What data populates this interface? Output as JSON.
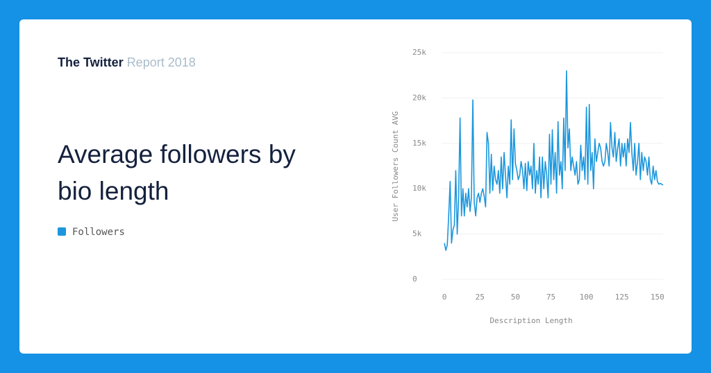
{
  "header": {
    "brand": "The Twitter",
    "report": "Report 2018"
  },
  "chart_data": {
    "type": "line",
    "title": "Average followers by bio length",
    "x_label": "Description Length",
    "y_label": "User Followers Count AVG",
    "x": [
      0,
      1,
      2,
      3,
      4,
      5,
      6,
      7,
      8,
      9,
      10,
      11,
      12,
      13,
      14,
      15,
      16,
      17,
      18,
      19,
      20,
      21,
      22,
      23,
      24,
      25,
      26,
      27,
      28,
      29,
      30,
      31,
      32,
      33,
      34,
      35,
      36,
      37,
      38,
      39,
      40,
      41,
      42,
      43,
      44,
      45,
      46,
      47,
      48,
      49,
      50,
      51,
      52,
      53,
      54,
      55,
      56,
      57,
      58,
      59,
      60,
      61,
      62,
      63,
      64,
      65,
      66,
      67,
      68,
      69,
      70,
      71,
      72,
      73,
      74,
      75,
      76,
      77,
      78,
      79,
      80,
      81,
      82,
      83,
      84,
      85,
      86,
      87,
      88,
      89,
      90,
      91,
      92,
      93,
      94,
      95,
      96,
      97,
      98,
      99,
      100,
      101,
      102,
      103,
      104,
      105,
      106,
      107,
      108,
      109,
      110,
      111,
      112,
      113,
      114,
      115,
      116,
      117,
      118,
      119,
      120,
      121,
      122,
      123,
      124,
      125,
      126,
      127,
      128,
      129,
      130,
      131,
      132,
      133,
      134,
      135,
      136,
      137,
      138,
      139,
      140,
      141,
      142,
      143,
      144,
      145,
      146,
      147,
      148,
      149,
      150,
      151,
      152,
      153,
      154
    ],
    "series": [
      {
        "name": "Followers",
        "color": "#1b96dc",
        "values": [
          4000,
          3200,
          3800,
          7000,
          10800,
          4000,
          5500,
          6000,
          12000,
          5000,
          9000,
          17800,
          7000,
          10000,
          7000,
          9500,
          8000,
          10000,
          7500,
          9000,
          19800,
          8500,
          7000,
          9000,
          9500,
          8500,
          9500,
          10000,
          9200,
          8000,
          16200,
          15000,
          9500,
          13800,
          9800,
          12500,
          11000,
          10500,
          12000,
          9500,
          13500,
          10000,
          14000,
          11500,
          9000,
          12500,
          10500,
          17600,
          11000,
          16600,
          12800,
          12000,
          11000,
          11500,
          13000,
          12000,
          10000,
          12800,
          9800,
          13000,
          11500,
          12500,
          10000,
          15000,
          9500,
          12000,
          10500,
          13500,
          9000,
          13500,
          10000,
          13000,
          11500,
          9000,
          16000,
          10500,
          16500,
          11000,
          14000,
          9500,
          17400,
          11500,
          13000,
          10000,
          17800,
          12000,
          23000,
          14500,
          16600,
          12000,
          13500,
          12500,
          11500,
          13000,
          10500,
          11000,
          14800,
          12000,
          13500,
          11000,
          19000,
          10500,
          19300,
          12000,
          14000,
          10000,
          15500,
          13000,
          14000,
          15000,
          14500,
          13000,
          12500,
          13000,
          15000,
          14000,
          12500,
          17300,
          14500,
          13500,
          16200,
          13000,
          14500,
          15500,
          12500,
          15000,
          13500,
          15000,
          12500,
          15500,
          14000,
          17300,
          14000,
          12000,
          15000,
          11500,
          13000,
          15000,
          11000,
          14000,
          12000,
          13500,
          13000,
          11500,
          13500,
          11000,
          10500,
          12500,
          11000,
          12000,
          10800,
          10500,
          10600,
          10500,
          10400
        ]
      }
    ],
    "xlim": [
      -2,
      154
    ],
    "xticks": [
      0,
      25,
      50,
      75,
      100,
      125,
      150
    ],
    "ylim": [
      0,
      25000
    ],
    "yticks": [
      0,
      {
        "value": 5000,
        "label": "5k"
      },
      {
        "value": 10000,
        "label": "10k"
      },
      {
        "value": 15000,
        "label": "15k"
      },
      {
        "value": 20000,
        "label": "20k"
      },
      {
        "value": 25000,
        "label": "25k"
      }
    ],
    "grid": true
  }
}
